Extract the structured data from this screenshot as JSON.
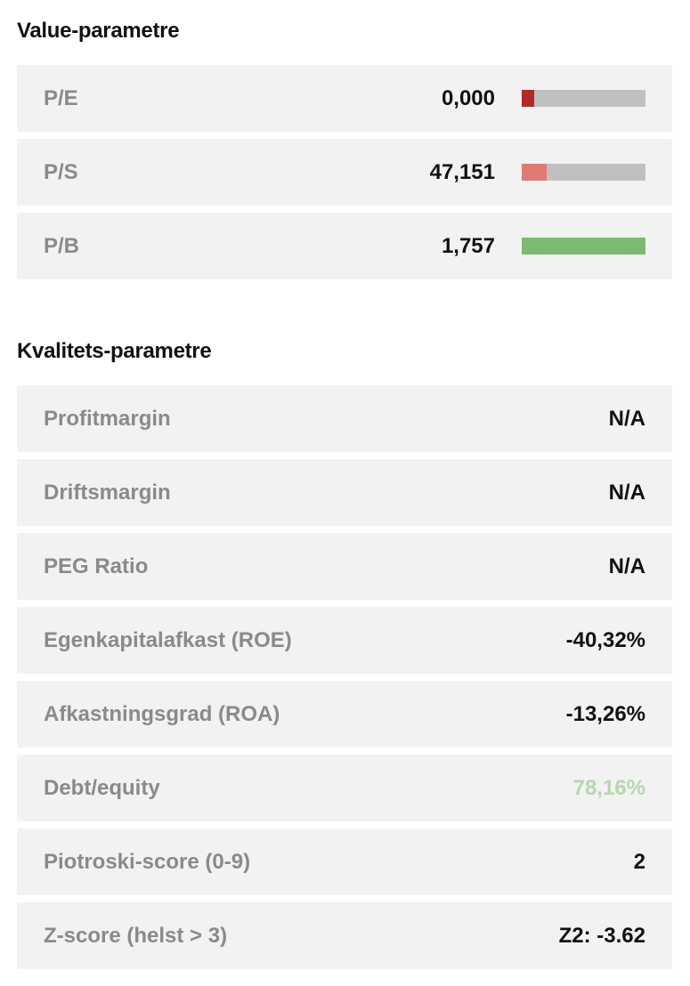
{
  "value_section": {
    "title": "Value-parametre",
    "rows": [
      {
        "label": "P/E",
        "value": "0,000",
        "bar_fraction": 0.1,
        "bar_color": "#b22a25"
      },
      {
        "label": "P/S",
        "value": "47,151",
        "bar_fraction": 0.2,
        "bar_color": "#e07a77"
      },
      {
        "label": "P/B",
        "value": "1,757",
        "bar_fraction": 1.0,
        "bar_color": "#7cba72"
      }
    ]
  },
  "quality_section": {
    "title": "Kvalitets-parametre",
    "rows": [
      {
        "label": "Profitmargin",
        "value": "N/A"
      },
      {
        "label": "Driftsmargin",
        "value": "N/A"
      },
      {
        "label": "PEG Ratio",
        "value": "N/A"
      },
      {
        "label": "Egenkapitalafkast (ROE)",
        "value": "-40,32%"
      },
      {
        "label": "Afkastningsgrad (ROA)",
        "value": "-13,26%"
      },
      {
        "label": "Debt/equity",
        "value": "78,16%",
        "value_color": "#b7d7b1"
      },
      {
        "label": "Piotroski-score (0-9)",
        "value": "2"
      },
      {
        "label": "Z-score (helst > 3)",
        "value": "Z2: -3.62"
      }
    ]
  },
  "colors": {
    "row_background": "#f2f2f2",
    "label_text": "#8a8a8a",
    "value_text": "#111111",
    "bar_track": "#c0c0c0"
  }
}
